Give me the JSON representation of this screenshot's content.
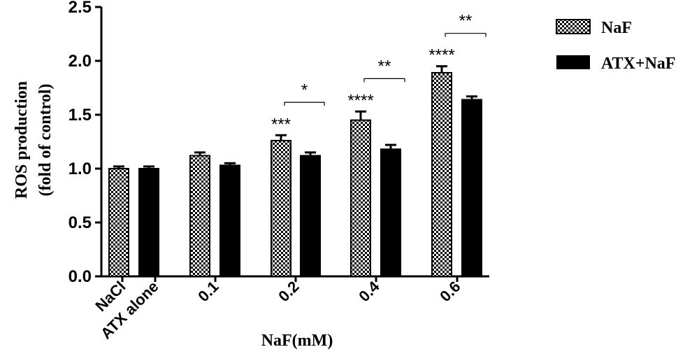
{
  "chart_data": {
    "type": "bar",
    "ylabel_line1": "ROS production",
    "ylabel_line2": "(fold of control)",
    "xlabel": "NaF(mM)",
    "ylim": [
      0,
      2.5
    ],
    "yticks": [
      "0.0",
      "0.5",
      "1.0",
      "1.5",
      "2.0",
      "2.5"
    ],
    "grid": false,
    "legend_position": "top-right",
    "groups": [
      {
        "label": "NaCl",
        "bars": [
          {
            "series": "NaF",
            "value": 1.0,
            "error": 0.02
          }
        ]
      },
      {
        "label": "ATX alone",
        "bars": [
          {
            "series": "ATX+NaF",
            "value": 1.0,
            "error": 0.02
          }
        ]
      },
      {
        "label": "0.1",
        "bars": [
          {
            "series": "NaF",
            "value": 1.12,
            "error": 0.03
          },
          {
            "series": "ATX+NaF",
            "value": 1.03,
            "error": 0.02
          }
        ]
      },
      {
        "label": "0.2",
        "bars": [
          {
            "series": "NaF",
            "value": 1.26,
            "error": 0.05,
            "stars": "***"
          },
          {
            "series": "ATX+NaF",
            "value": 1.12,
            "error": 0.03
          }
        ],
        "comparison": "*"
      },
      {
        "label": "0.4",
        "bars": [
          {
            "series": "NaF",
            "value": 1.45,
            "error": 0.08,
            "stars": "****"
          },
          {
            "series": "ATX+NaF",
            "value": 1.18,
            "error": 0.04
          }
        ],
        "comparison": "**"
      },
      {
        "label": "0.6",
        "bars": [
          {
            "series": "NaF",
            "value": 1.89,
            "error": 0.06,
            "stars": "****"
          },
          {
            "series": "ATX+NaF",
            "value": 1.64,
            "error": 0.03
          }
        ],
        "comparison": "**"
      }
    ],
    "series": [
      {
        "name": "NaF",
        "pattern": "checker",
        "color": "#000000"
      },
      {
        "name": "ATX+NaF",
        "pattern": "solid",
        "color": "#000000"
      }
    ]
  }
}
